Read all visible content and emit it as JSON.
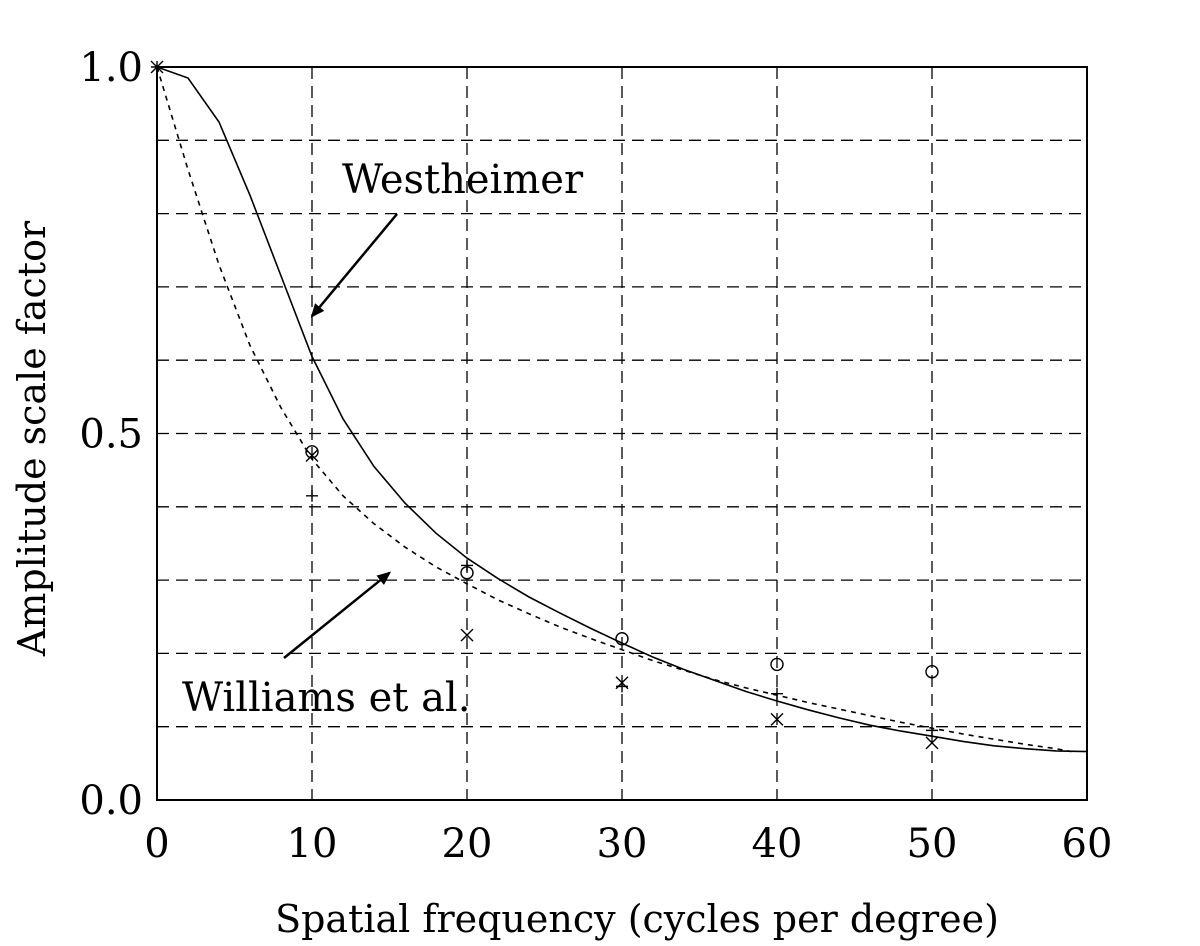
{
  "chart_data": {
    "type": "line",
    "title": "",
    "xlabel": "Spatial frequency (cycles per degree)",
    "ylabel": "Amplitude scale factor",
    "xlim": [
      0,
      60
    ],
    "ylim": [
      0,
      1
    ],
    "x_ticks": [
      0,
      10,
      20,
      30,
      40,
      50,
      60
    ],
    "x_tick_labels": [
      "0",
      "10",
      "20",
      "30",
      "40",
      "50",
      "60"
    ],
    "y_ticks": [
      0,
      0.5,
      1
    ],
    "y_tick_labels": [
      "0.0",
      "0.5",
      "1.0"
    ],
    "grid": true,
    "grid_x": [
      10,
      20,
      30,
      40,
      50
    ],
    "grid_y": [
      0.1,
      0.2,
      0.3,
      0.4,
      0.5,
      0.6,
      0.7,
      0.8,
      0.9
    ],
    "series": [
      {
        "style": "solid",
        "label_ref": "Westheimer",
        "x": [
          0,
          2,
          4,
          6,
          8,
          10,
          12,
          14,
          16,
          18,
          20,
          22,
          24,
          26,
          28,
          30,
          32,
          34,
          36,
          38,
          40,
          42,
          44,
          46,
          48,
          50,
          52,
          54,
          56,
          58,
          60
        ],
        "values": [
          1.0,
          0.985,
          0.925,
          0.825,
          0.715,
          0.605,
          0.52,
          0.455,
          0.405,
          0.364,
          0.33,
          0.302,
          0.277,
          0.255,
          0.234,
          0.214,
          0.195,
          0.178,
          0.163,
          0.148,
          0.135,
          0.123,
          0.112,
          0.102,
          0.094,
          0.087,
          0.08,
          0.074,
          0.07,
          0.067,
          0.066
        ]
      },
      {
        "style": "dashed",
        "label_ref": "Williams et al.",
        "x": [
          0,
          2,
          4,
          6,
          8,
          10,
          12,
          14,
          16,
          18,
          20,
          22,
          24,
          26,
          28,
          30,
          32,
          34,
          36,
          38,
          40,
          42,
          44,
          46,
          48,
          50,
          52,
          54,
          56,
          58,
          59
        ],
        "values": [
          1.0,
          0.86,
          0.73,
          0.62,
          0.535,
          0.465,
          0.415,
          0.377,
          0.345,
          0.318,
          0.295,
          0.273,
          0.254,
          0.236,
          0.22,
          0.205,
          0.19,
          0.177,
          0.164,
          0.153,
          0.143,
          0.133,
          0.124,
          0.115,
          0.106,
          0.098,
          0.09,
          0.083,
          0.076,
          0.07,
          0.066
        ]
      }
    ],
    "points": [
      {
        "marker": "circle",
        "x": [
          10,
          20,
          30,
          40,
          50
        ],
        "values": [
          0.475,
          0.31,
          0.22,
          0.185,
          0.175
        ]
      },
      {
        "marker": "plus",
        "x": [
          0,
          10,
          20,
          30,
          40,
          50
        ],
        "values": [
          1.0,
          0.415,
          0.32,
          0.155,
          0.145,
          0.095
        ]
      },
      {
        "marker": "cross",
        "x": [
          0,
          10,
          20,
          30,
          40,
          50
        ],
        "values": [
          1.0,
          0.47,
          0.225,
          0.16,
          0.11,
          0.078
        ]
      }
    ],
    "annotations": [
      {
        "text": "Westheimer",
        "arrow_to": {
          "x": 10,
          "y": 0.66
        }
      },
      {
        "text": "Williams et al.",
        "arrow_to": {
          "x": 15,
          "y": 0.31
        }
      }
    ]
  }
}
